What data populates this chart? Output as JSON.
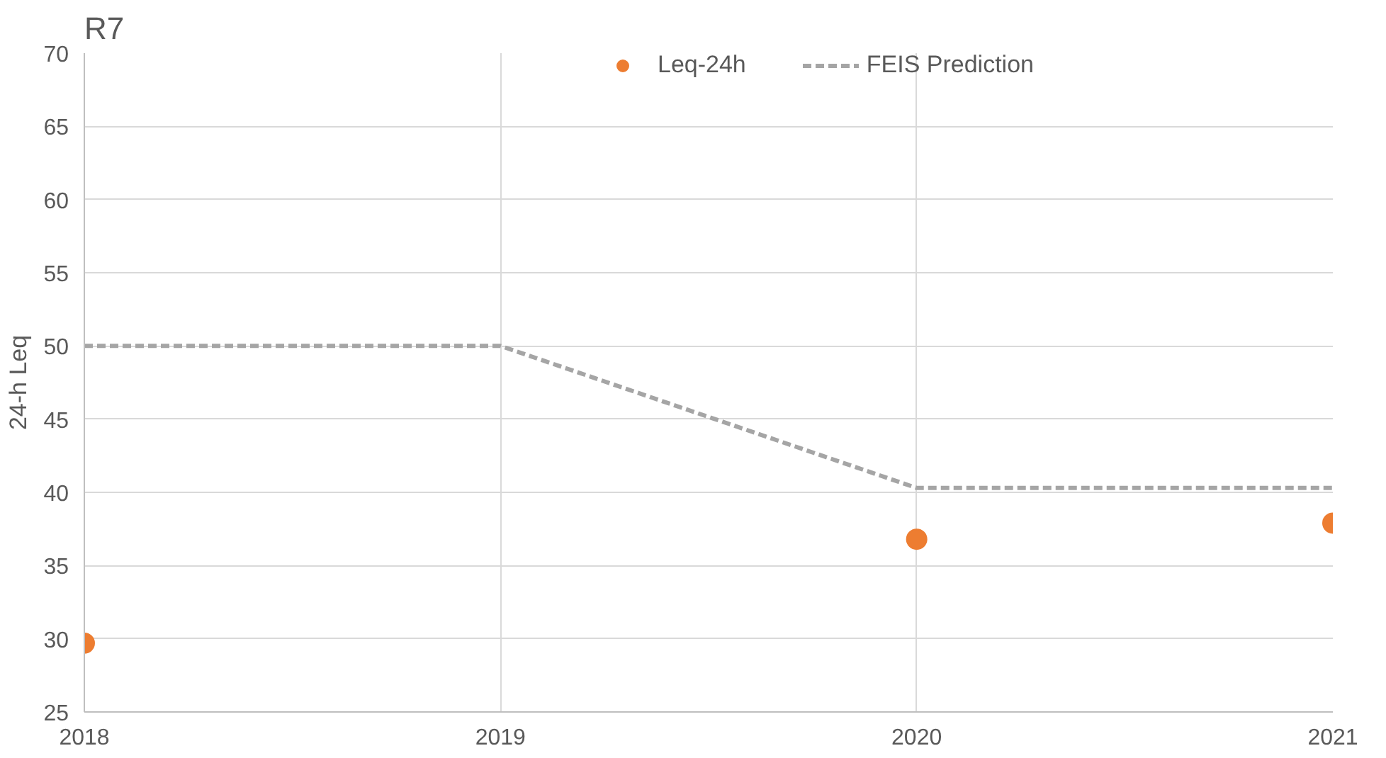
{
  "chart_data": {
    "type": "scatter",
    "title": "R7",
    "ylabel": "24-h Leq",
    "series": [
      {
        "name": "Leq-24h",
        "color": "#ed7d31",
        "marker": "circle",
        "x": [
          2018,
          2020,
          2021
        ],
        "values": [
          29.7,
          36.8,
          37.9
        ]
      },
      {
        "name": "FEIS Prediction",
        "type": "line",
        "color": "#a5a5a5",
        "line_style": "dashed",
        "x": [
          2018,
          2019,
          2020,
          2021
        ],
        "values": [
          50,
          50,
          40.3,
          40.3
        ]
      }
    ],
    "xlim": [
      2018,
      2021
    ],
    "xticks": [
      2018,
      2019,
      2020,
      2021
    ],
    "ylim": [
      25,
      70
    ],
    "yticks": [
      25,
      30,
      35,
      40,
      45,
      50,
      55,
      60,
      65,
      70
    ],
    "grid": true,
    "legend": "top right"
  }
}
